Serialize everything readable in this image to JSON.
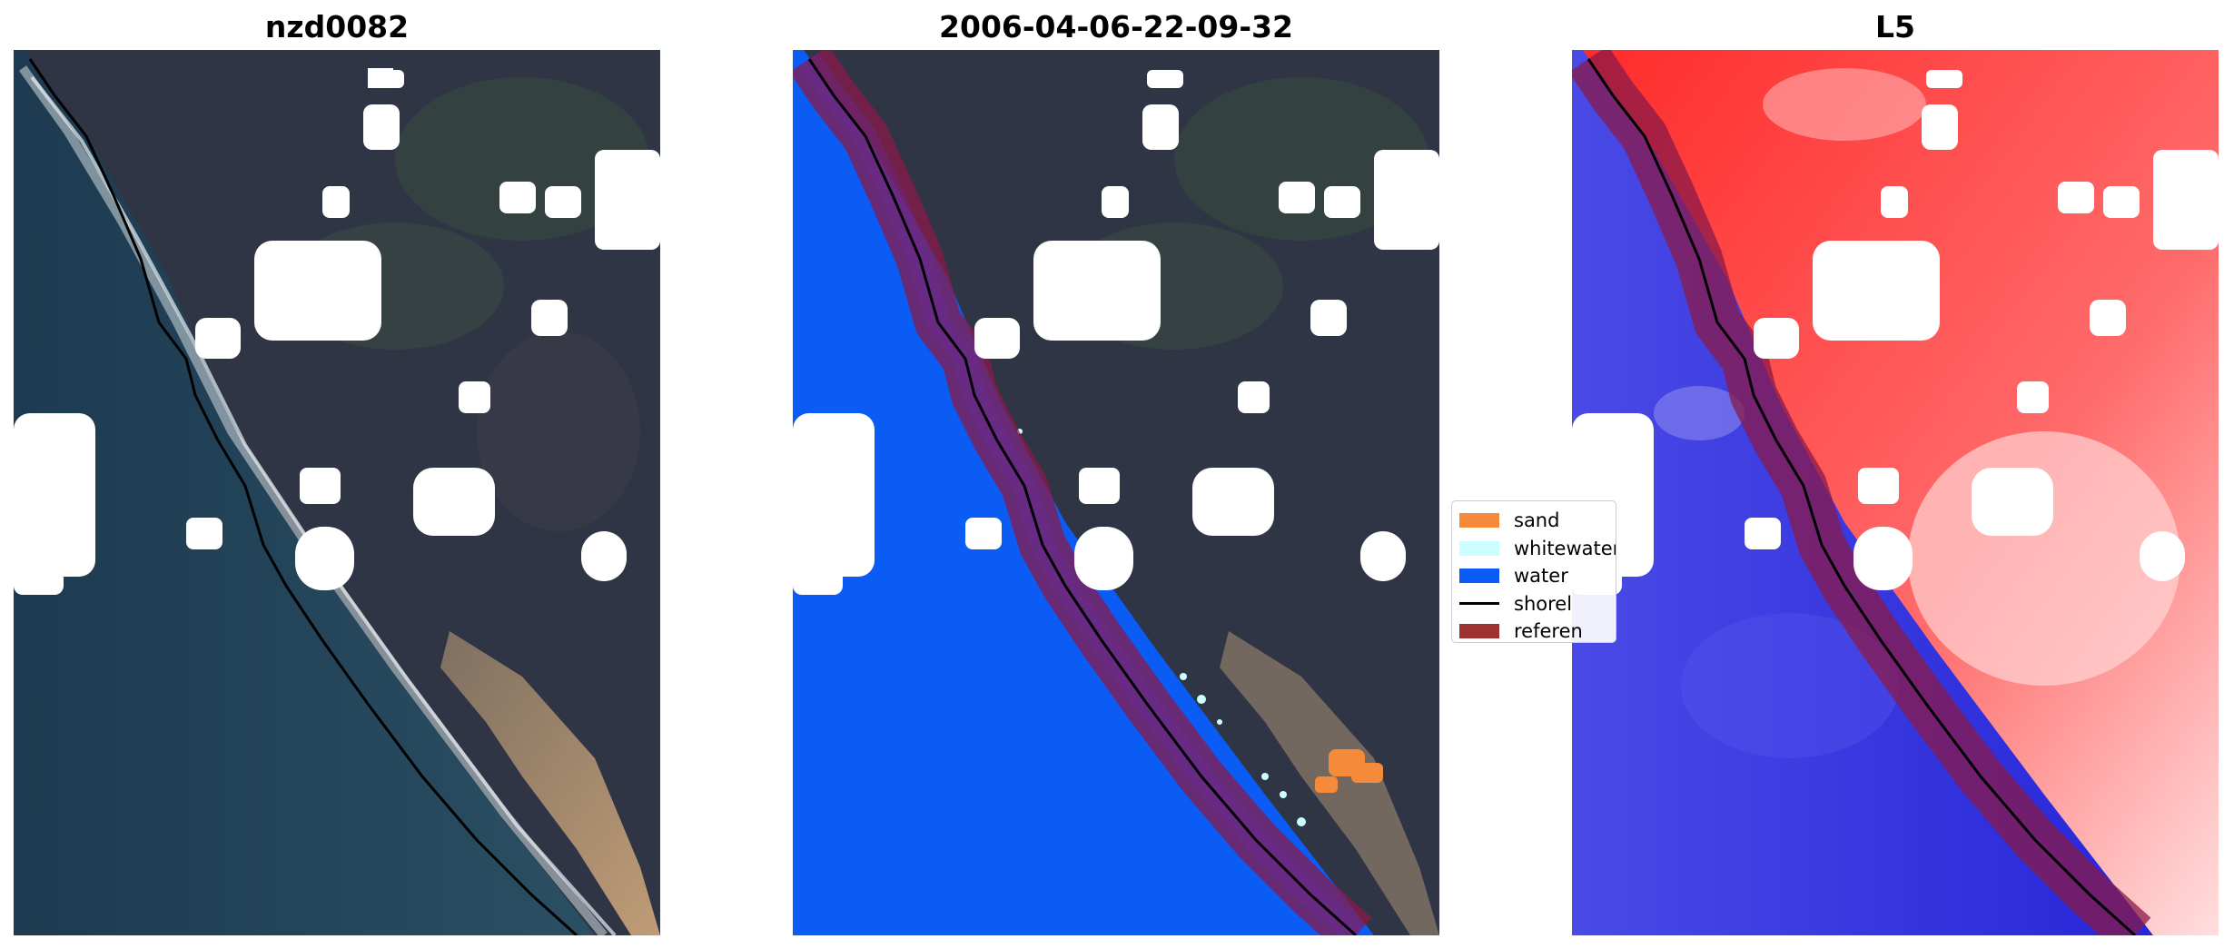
{
  "titles": {
    "left": "nzd0082",
    "center": "2006-04-06-22-09-32",
    "right": "L5"
  },
  "legend": [
    {
      "label": "sand",
      "color": "#f58a3a",
      "kind": "patch"
    },
    {
      "label": "whitewater",
      "color": "#ccffff",
      "kind": "patch"
    },
    {
      "label": "water",
      "color": "#0b5cf5",
      "kind": "patch"
    },
    {
      "label": "shorel",
      "color": "#000000",
      "kind": "line"
    },
    {
      "label": "referen",
      "color": "#9e3232",
      "kind": "patch"
    }
  ],
  "colors": {
    "land_dark": "#2e3444",
    "ocean": "#1f3f55",
    "class_water": "#0b5cf5",
    "class_sand": "#f58a3a",
    "class_whitewater": "#ccffff",
    "reference_band": "#8a1a4a",
    "index_positive": "#ff1a1a",
    "index_negative": "#3030e0",
    "cloud_mask": "#ffffff"
  }
}
